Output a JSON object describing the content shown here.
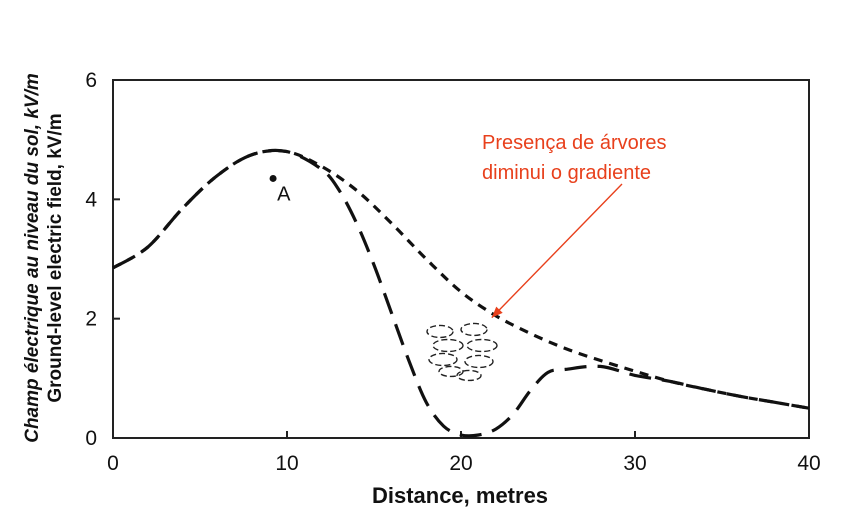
{
  "chart_data": {
    "type": "line",
    "xlabel": "Distance, metres",
    "ylabel_fr": "Champ électrique au niveau du sol, kV/m",
    "ylabel_en": "Ground-level electric field, kV/m",
    "xlim": [
      0,
      40
    ],
    "ylim": [
      0,
      6
    ],
    "xticks": [
      "0",
      "10",
      "20",
      "30",
      "40"
    ],
    "yticks": [
      "0",
      "2",
      "4",
      "6"
    ],
    "grid": false,
    "series": [
      {
        "style": "short-dash",
        "x": [
          0,
          2,
          4,
          6,
          8,
          10,
          12,
          14,
          16,
          18,
          20,
          22,
          24,
          26,
          28,
          30,
          32,
          34,
          36,
          38,
          40
        ],
        "y": [
          2.85,
          3.2,
          3.85,
          4.4,
          4.75,
          4.8,
          4.55,
          4.15,
          3.6,
          3.0,
          2.45,
          2.05,
          1.75,
          1.5,
          1.3,
          1.12,
          0.95,
          0.82,
          0.7,
          0.6,
          0.5
        ]
      },
      {
        "style": "long-dash",
        "x": [
          0,
          2,
          4,
          6,
          8,
          10,
          12,
          13,
          14,
          15,
          16,
          17,
          18,
          19,
          20,
          21,
          22,
          23,
          24,
          25,
          26,
          28,
          30,
          32,
          34,
          36,
          38,
          40
        ],
        "y": [
          2.85,
          3.2,
          3.85,
          4.4,
          4.75,
          4.8,
          4.5,
          4.15,
          3.6,
          2.9,
          2.1,
          1.3,
          0.6,
          0.2,
          0.05,
          0.05,
          0.15,
          0.4,
          0.8,
          1.1,
          1.15,
          1.2,
          1.05,
          0.95,
          0.82,
          0.7,
          0.6,
          0.5
        ]
      }
    ],
    "points": [
      {
        "label": "A",
        "x": 9.2,
        "y": 4.35
      }
    ],
    "annotation": {
      "line1": "Presença de árvores",
      "line2": "diminui o gradiente",
      "color": "#e8401c",
      "target_x": 22,
      "target_y": 1.95
    },
    "tree_cluster": {
      "x": 20,
      "y": 1.45
    }
  }
}
